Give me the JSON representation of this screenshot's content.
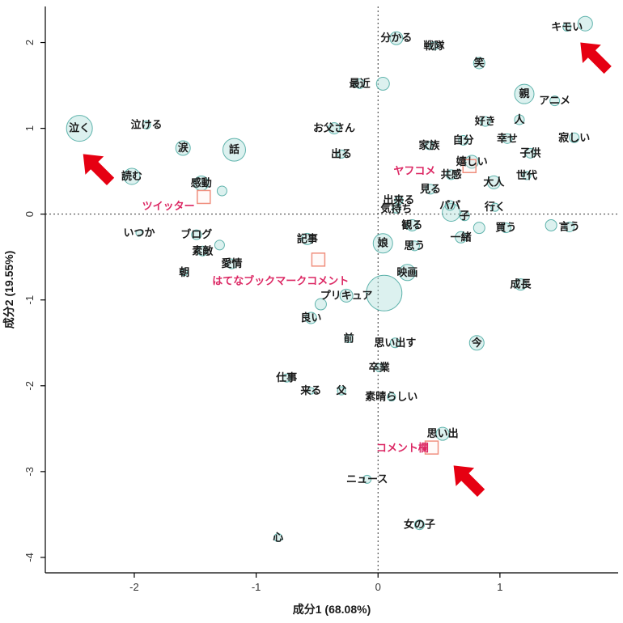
{
  "chart_data": {
    "type": "scatter",
    "title": "",
    "xlabel": "成分1 (68.08%)",
    "ylabel": "成分2 (19.55%)",
    "xlim": [
      -2.73,
      1.97
    ],
    "ylim": [
      -4.18,
      2.42
    ],
    "x_ticks": [
      -2,
      -1,
      0,
      1
    ],
    "y_ticks": [
      -4,
      -3,
      -2,
      -1,
      0,
      1,
      2
    ],
    "zero_lines": true,
    "grid": false,
    "legend": "none",
    "words": [
      {
        "t": "分かる",
        "x": 0.15,
        "y": 2.05,
        "r": 8
      },
      {
        "t": "戦隊",
        "x": 0.46,
        "y": 1.96,
        "r": 5
      },
      {
        "t": "キモい",
        "x": 1.55,
        "y": 2.18,
        "r": 5
      },
      {
        "t": "笑",
        "x": 0.83,
        "y": 1.76,
        "r": 7
      },
      {
        "t": "最近",
        "x": -0.15,
        "y": 1.52,
        "r": 6
      },
      {
        "t": "親",
        "x": 1.2,
        "y": 1.4,
        "r": 12
      },
      {
        "t": "アニメ",
        "x": 1.45,
        "y": 1.32,
        "r": 6
      },
      {
        "t": "好き",
        "x": 0.88,
        "y": 1.08,
        "r": 6
      },
      {
        "t": "人",
        "x": 1.16,
        "y": 1.1,
        "r": 6
      },
      {
        "t": "お父さん",
        "x": -0.36,
        "y": 1.0,
        "r": 7
      },
      {
        "t": "泣く",
        "x": -2.45,
        "y": 1.0,
        "r": 16
      },
      {
        "t": "泣ける",
        "x": -1.9,
        "y": 1.04,
        "r": 5
      },
      {
        "t": "涙",
        "x": -1.6,
        "y": 0.77,
        "r": 9
      },
      {
        "t": "話",
        "x": -1.18,
        "y": 0.75,
        "r": 14
      },
      {
        "t": "家族",
        "x": 0.42,
        "y": 0.8,
        "r": 5
      },
      {
        "t": "自分",
        "x": 0.7,
        "y": 0.86,
        "r": 6
      },
      {
        "t": "幸せ",
        "x": 1.06,
        "y": 0.88,
        "r": 6
      },
      {
        "t": "子供",
        "x": 1.25,
        "y": 0.71,
        "r": 6
      },
      {
        "t": "寂しい",
        "x": 1.61,
        "y": 0.89,
        "r": 6
      },
      {
        "t": "出る",
        "x": -0.3,
        "y": 0.7,
        "r": 5
      },
      {
        "t": "読む",
        "x": -2.02,
        "y": 0.44,
        "r": 10
      },
      {
        "t": "感動",
        "x": -1.45,
        "y": 0.36,
        "r": 9
      },
      {
        "t": "嬉しい",
        "x": 0.77,
        "y": 0.61,
        "r": 8
      },
      {
        "t": "共感",
        "x": 0.6,
        "y": 0.46,
        "r": 6
      },
      {
        "t": "大人",
        "x": 0.95,
        "y": 0.37,
        "r": 8
      },
      {
        "t": "世代",
        "x": 1.22,
        "y": 0.45,
        "r": 5
      },
      {
        "t": "見る",
        "x": 0.43,
        "y": 0.29,
        "r": 6
      },
      {
        "t": "出来る",
        "x": 0.17,
        "y": 0.16,
        "r": 5
      },
      {
        "t": "気持ち",
        "x": 0.15,
        "y": 0.06,
        "r": 5
      },
      {
        "t": "パパ",
        "x": 0.59,
        "y": 0.1,
        "r": 6
      },
      {
        "t": "子",
        "x": 0.71,
        "y": -0.02,
        "r": 6
      },
      {
        "t": "行く",
        "x": 0.96,
        "y": 0.08,
        "r": 5
      },
      {
        "t": "いつか",
        "x": -1.96,
        "y": -0.22,
        "r": 4
      },
      {
        "t": "ブログ",
        "x": -1.49,
        "y": -0.24,
        "r": 6
      },
      {
        "t": "観る",
        "x": 0.28,
        "y": -0.13,
        "r": 7
      },
      {
        "t": "娘",
        "x": 0.04,
        "y": -0.34,
        "r": 12
      },
      {
        "t": "思う",
        "x": 0.3,
        "y": -0.37,
        "r": 6
      },
      {
        "t": "一緒",
        "x": 0.68,
        "y": -0.27,
        "r": 7
      },
      {
        "t": "買う",
        "x": 1.05,
        "y": -0.16,
        "r": 6
      },
      {
        "t": "言う",
        "x": 1.57,
        "y": -0.15,
        "r": 6
      },
      {
        "t": "記事",
        "x": -0.58,
        "y": -0.29,
        "r": 7
      },
      {
        "t": "素敵",
        "x": -1.44,
        "y": -0.43,
        "r": 6
      },
      {
        "t": "愛情",
        "x": -1.2,
        "y": -0.58,
        "r": 6
      },
      {
        "t": "朝",
        "x": -1.59,
        "y": -0.68,
        "r": 4
      },
      {
        "t": "映画",
        "x": 0.24,
        "y": -0.68,
        "r": 10
      },
      {
        "t": "成長",
        "x": 1.17,
        "y": -0.82,
        "r": 7
      },
      {
        "t": "プリキュア",
        "x": -0.26,
        "y": -0.95,
        "r": 8
      },
      {
        "t": "良い",
        "x": -0.55,
        "y": -1.21,
        "r": 7
      },
      {
        "t": "前",
        "x": -0.24,
        "y": -1.45,
        "r": 5
      },
      {
        "t": "思い出す",
        "x": 0.14,
        "y": -1.5,
        "r": 6
      },
      {
        "t": "今",
        "x": 0.81,
        "y": -1.5,
        "r": 9
      },
      {
        "t": "卒業",
        "x": 0.01,
        "y": -1.79,
        "r": 5
      },
      {
        "t": "仕事",
        "x": -0.75,
        "y": -1.91,
        "r": 5
      },
      {
        "t": "来る",
        "x": -0.55,
        "y": -2.06,
        "r": 4
      },
      {
        "t": "父",
        "x": -0.3,
        "y": -2.06,
        "r": 5
      },
      {
        "t": "素晴らしい",
        "x": 0.11,
        "y": -2.13,
        "r": 5
      },
      {
        "t": "思い出",
        "x": 0.53,
        "y": -2.56,
        "r": 8
      },
      {
        "t": "ニュース",
        "x": -0.09,
        "y": -3.09,
        "r": 5
      },
      {
        "t": "女の子",
        "x": 0.34,
        "y": -3.62,
        "r": 6
      },
      {
        "t": "心",
        "x": -0.82,
        "y": -3.77,
        "r": 5
      }
    ],
    "extra_bubbles": [
      {
        "x": 0.05,
        "y": -0.92,
        "r": 22
      },
      {
        "x": 0.6,
        "y": 0.02,
        "r": 11
      },
      {
        "x": 0.83,
        "y": -0.16,
        "r": 7
      },
      {
        "x": 1.42,
        "y": -0.13,
        "r": 7
      },
      {
        "x": 0.04,
        "y": 1.52,
        "r": 8
      },
      {
        "x": -1.28,
        "y": 0.27,
        "r": 6
      },
      {
        "x": -1.3,
        "y": -0.36,
        "r": 6
      },
      {
        "x": -0.47,
        "y": -1.05,
        "r": 7
      },
      {
        "x": 1.7,
        "y": 2.22,
        "r": 9
      }
    ],
    "media": [
      {
        "label": "ツイッター",
        "sq_x": -1.43,
        "sq_y": 0.2,
        "lbl_x": -1.72,
        "lbl_y": 0.09
      },
      {
        "label": "ヤフコメ",
        "sq_x": 0.75,
        "sq_y": 0.56,
        "lbl_x": 0.3,
        "lbl_y": 0.5
      },
      {
        "label": "はてなブックマークコメント",
        "sq_x": -0.49,
        "sq_y": -0.53,
        "lbl_x": -0.8,
        "lbl_y": -0.78
      },
      {
        "label": "コメント欄",
        "sq_x": 0.44,
        "sq_y": -2.72,
        "lbl_x": 0.2,
        "lbl_y": -2.73
      }
    ],
    "arrows": [
      {
        "tip_x": -2.42,
        "tip_y": 0.7
      },
      {
        "tip_x": 1.66,
        "tip_y": 2.0
      },
      {
        "tip_x": 0.62,
        "tip_y": -2.93
      }
    ],
    "colors": {
      "bubble_fill": "rgba(178,223,219,0.45)",
      "bubble_stroke": "#5fb3ac",
      "word_text": "#1a1a1a",
      "media_text": "#dc2864",
      "media_square_stroke": "#f0907f",
      "media_square_fill": "rgba(255,235,230,0.25)",
      "arrow": "#e60012",
      "axis": "#000000",
      "dash_line": "#333333",
      "tick_text": "#333333"
    }
  }
}
